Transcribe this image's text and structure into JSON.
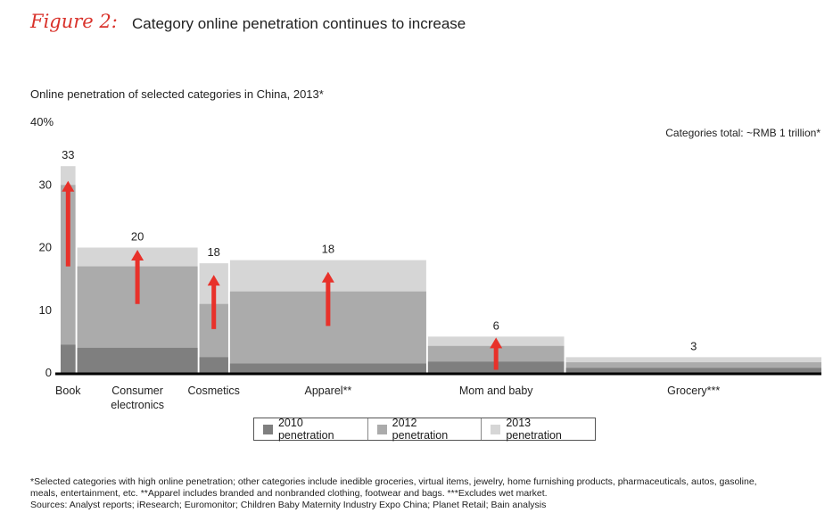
{
  "figure": {
    "label": "Figure 2:",
    "title": "Category online penetration continues to increase",
    "subtitle": "Online penetration of selected categories in China, 2013*",
    "total_note": "Categories total: ~RMB 1 trillion*"
  },
  "chart_data": {
    "type": "bar",
    "variant": "marimekko",
    "y_axis_ticks": [
      "0",
      "10",
      "20",
      "30",
      "40%"
    ],
    "ylim": [
      0,
      40
    ],
    "categories": [
      "Book",
      "Consumer electronics",
      "Cosmetics",
      "Apparel**",
      "Mom and baby",
      "Grocery***"
    ],
    "category_labels": [
      [
        "Book"
      ],
      [
        "Consumer",
        "electronics"
      ],
      [
        "Cosmetics"
      ],
      [
        "Apparel**"
      ],
      [
        "Mom and baby"
      ],
      [
        "Grocery***"
      ]
    ],
    "width_share": [
      1.7,
      13.8,
      3.3,
      22.5,
      15.6,
      29.3
    ],
    "series": [
      {
        "name": "2010 penetration",
        "values": [
          4.5,
          4.0,
          2.5,
          1.5,
          1.8,
          0.8
        ],
        "color": "#7f7f7f"
      },
      {
        "name": "2012 penetration",
        "values": [
          30.0,
          17.0,
          11.0,
          13.0,
          4.3,
          1.7
        ],
        "color": "#ababab"
      },
      {
        "name": "2013 penetration",
        "values": [
          33.0,
          20.0,
          17.5,
          18.0,
          5.8,
          2.5
        ],
        "color": "#d6d6d6"
      }
    ],
    "data_labels": [
      "33",
      "20",
      "18",
      "18",
      "6",
      "3"
    ],
    "arrows": [
      {
        "from": 17.0,
        "to": 30.5
      },
      {
        "from": 11.0,
        "to": 19.5
      },
      {
        "from": 7.0,
        "to": 15.5
      },
      {
        "from": 7.5,
        "to": 16.0
      },
      {
        "from": 0.5,
        "to": 5.5
      }
    ],
    "arrow_color": "#e8312a",
    "legend_position": "bottom-center",
    "grid": false
  },
  "legend": [
    "2010 penetration",
    "2012 penetration",
    "2013 penetration"
  ],
  "footnotes": [
    "*Selected categories with high online penetration; other categories include inedible groceries, virtual items, jewelry, home furnishing products, pharmaceuticals, autos, gasoline,",
    "meals, entertainment, etc. **Apparel includes branded and nonbranded clothing, footwear and bags. ***Excludes wet market.",
    "Sources: Analyst reports; iResearch; Euromonitor; Children Baby Maternity Industry Expo China; Planet Retail; Bain analysis"
  ]
}
